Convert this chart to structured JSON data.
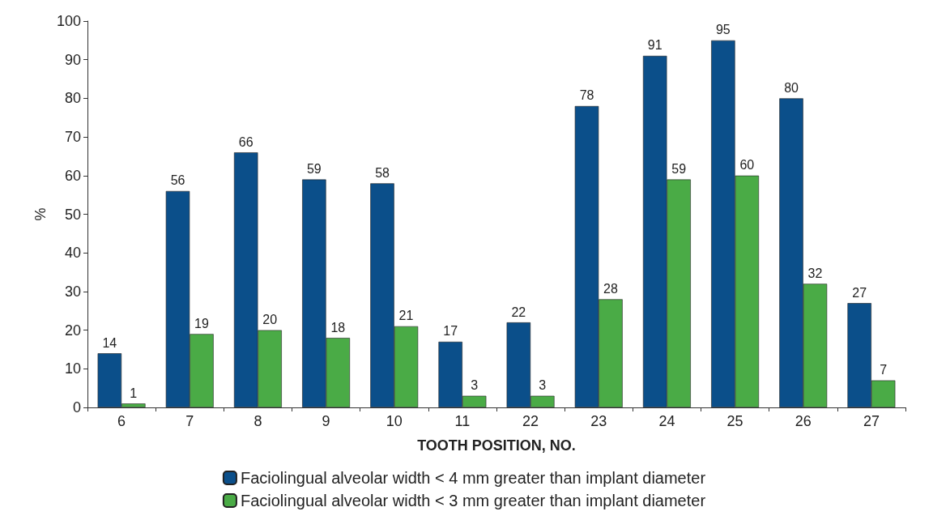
{
  "chart_data": {
    "type": "bar",
    "xlabel": "TOOTH POSITION, NO.",
    "ylabel": "%",
    "categories": [
      "6",
      "7",
      "8",
      "9",
      "10",
      "11",
      "22",
      "23",
      "24",
      "25",
      "26",
      "27"
    ],
    "series": [
      {
        "name": "Faciolingual alveolar width < 4 mm greater than implant diameter",
        "color": "#0b4f8a",
        "values": [
          14,
          56,
          66,
          59,
          58,
          17,
          22,
          78,
          91,
          95,
          80,
          27
        ]
      },
      {
        "name": "Faciolingual alveolar width < 3 mm greater than implant diameter",
        "color": "#4aab46",
        "values": [
          1,
          19,
          20,
          18,
          21,
          3,
          3,
          28,
          59,
          60,
          32,
          7
        ]
      }
    ],
    "ylim": [
      0,
      100
    ],
    "yticks": [
      0,
      10,
      20,
      30,
      40,
      50,
      60,
      70,
      80,
      90,
      100
    ],
    "grid": false,
    "legend": "bottom",
    "data_labels": true
  }
}
